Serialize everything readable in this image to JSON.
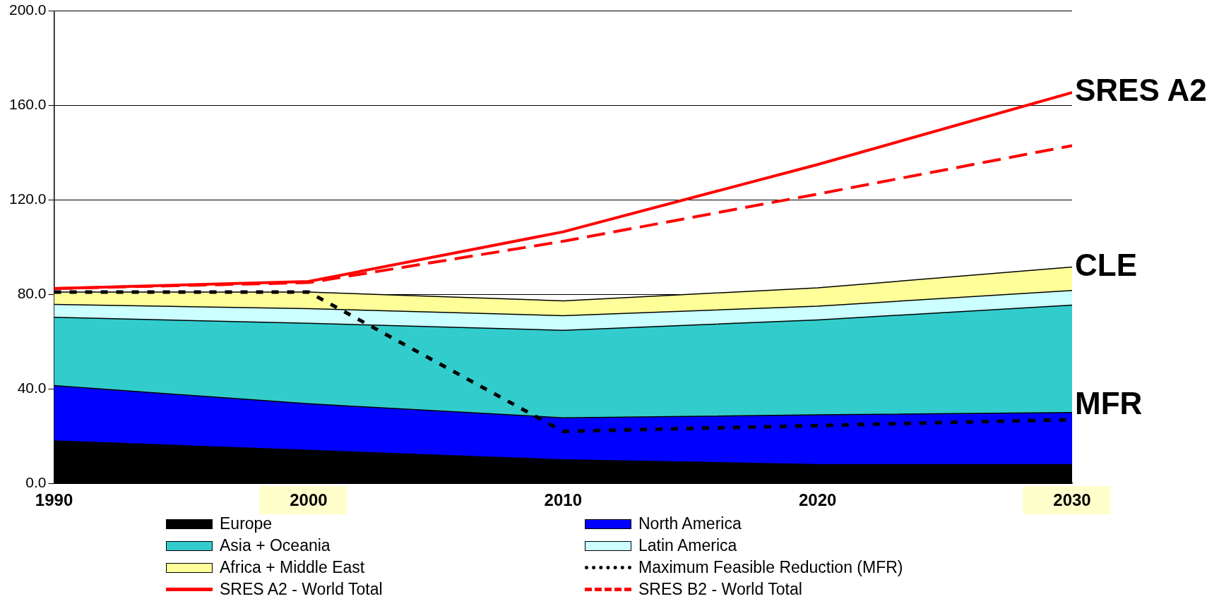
{
  "chart_data": {
    "type": "area",
    "stacked": true,
    "x": [
      1990,
      2000,
      2010,
      2020,
      2030
    ],
    "xlim": [
      1990,
      2030
    ],
    "xticks": [
      1990,
      2000,
      2010,
      2020,
      2030
    ],
    "ylim": [
      0,
      200
    ],
    "yticks": [
      {
        "value": 0,
        "label": "0.0"
      },
      {
        "value": 40,
        "label": "40.0"
      },
      {
        "value": 80,
        "label": "80.0"
      },
      {
        "value": 120,
        "label": "120.0"
      },
      {
        "value": 160,
        "label": "160.0"
      },
      {
        "value": 200,
        "label": "200.0"
      }
    ],
    "grid": "y",
    "legend": "bottom",
    "series": [
      {
        "name": "Europe",
        "type": "area",
        "color": "#000000",
        "values": [
          18,
          14,
          10,
          8,
          8
        ]
      },
      {
        "name": "North America",
        "type": "area",
        "color": "#0000ff",
        "values": [
          23.4,
          19.7,
          17.8,
          21,
          22
        ]
      },
      {
        "name": "Asia + Oceania",
        "type": "area",
        "color": "#33cccc",
        "values": [
          28.9,
          34.1,
          37,
          40.2,
          45.5
        ]
      },
      {
        "name": "Latin America",
        "type": "area",
        "color": "#ccffff",
        "values": [
          5.5,
          6.2,
          6.2,
          5.8,
          6.2
        ]
      },
      {
        "name": "Africa + Middle East",
        "type": "area",
        "color": "#ffff99",
        "values": [
          5.2,
          7,
          6.3,
          7.8,
          9.9
        ]
      },
      {
        "name": "Maximum Feasible Reduction (MFR)",
        "type": "line",
        "color": "#000000",
        "line_style": "dotted",
        "values": [
          81,
          81,
          22,
          24.5,
          27
        ]
      },
      {
        "name": "SRES A2 - World Total",
        "type": "line",
        "color": "#ff0000",
        "line_style": "solid",
        "values": [
          82.5,
          85.5,
          106.5,
          135,
          165.5
        ]
      },
      {
        "name": "SRES B2 - World Total",
        "type": "line",
        "color": "#ff0000",
        "line_style": "dashed",
        "values": [
          82.5,
          85,
          102.5,
          122.5,
          143
        ]
      }
    ],
    "annotations": [
      "SRES A2",
      "CLE",
      "MFR"
    ]
  }
}
